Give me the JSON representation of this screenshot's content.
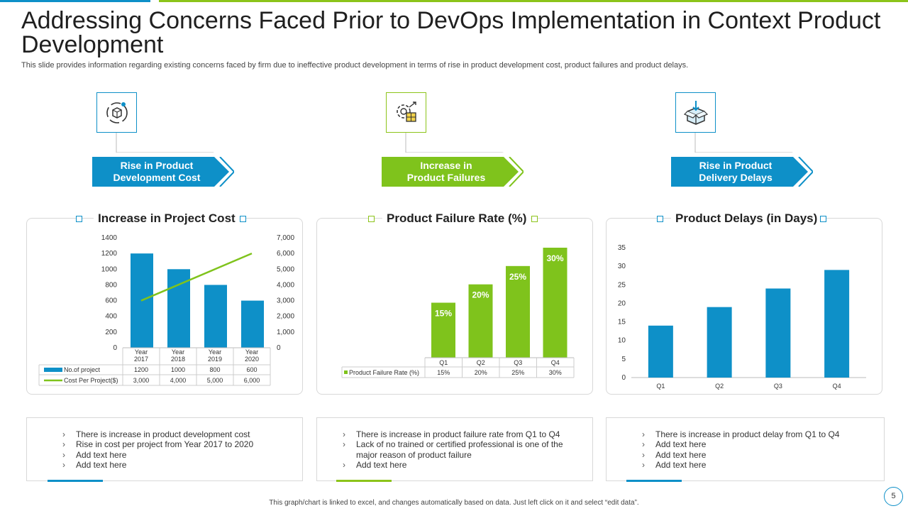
{
  "header": {
    "title": "Addressing Concerns Faced Prior to DevOps Implementation in Context Product Development",
    "subtitle": "This slide provides information regarding existing concerns faced by firm due to ineffective product development in terms of rise in product development cost, product failures and product delays."
  },
  "colors": {
    "blue": "#0e90c8",
    "green": "#8cc41a",
    "lime": "#7fc31c"
  },
  "sections": [
    {
      "icon": "product-cycle-icon",
      "arrow_label": [
        "Rise in Product",
        "Development Cost"
      ],
      "chart_title": "Increase in Project Cost",
      "notes": [
        "There is increase in product development cost",
        "Rise in cost per project from Year 2017 to 2020",
        "Add text here",
        "Add text here"
      ]
    },
    {
      "icon": "gear-box-icon",
      "arrow_label": [
        "Increase in",
        "Product Failures"
      ],
      "chart_title": "Product Failure Rate (%)",
      "notes": [
        "There is increase in product failure rate from Q1 to Q4",
        "Lack of no trained or certified professional is one of the major reason of product failure",
        "Add text here"
      ]
    },
    {
      "icon": "package-box-icon",
      "arrow_label": [
        "Rise in Product",
        "Delivery Delays"
      ],
      "chart_title": "Product Delays (in Days)",
      "notes": [
        "There is increase in product delay from Q1 to Q4",
        "Add text here",
        "Add text here",
        "Add text here"
      ]
    }
  ],
  "chart_data": [
    {
      "type": "bar",
      "title": "Increase in Project Cost",
      "categories": [
        "Year 2017",
        "Year 2018",
        "Year 2019",
        "Year 2020"
      ],
      "series": [
        {
          "name": "No.of project",
          "type": "bar",
          "axis": "left",
          "values": [
            1200,
            1000,
            800,
            600
          ],
          "display": [
            "1200",
            "1000",
            "800",
            "600"
          ]
        },
        {
          "name": "Cost Per Project($)",
          "type": "line",
          "axis": "right",
          "values": [
            3000,
            4000,
            5000,
            6000
          ],
          "display": [
            "3,000",
            "4,000",
            "5,000",
            "6,000"
          ]
        }
      ],
      "ylim_left": [
        0,
        1400
      ],
      "yticks_left": [
        "0",
        "200",
        "400",
        "600",
        "800",
        "1000",
        "1200",
        "1400"
      ],
      "ylim_right": [
        0,
        7000
      ],
      "yticks_right": [
        "0",
        "1,000",
        "2,000",
        "3,000",
        "4,000",
        "5,000",
        "6,000",
        "7,000"
      ]
    },
    {
      "type": "bar",
      "title": "Product Failure Rate (%)",
      "categories": [
        "Q1",
        "Q2",
        "Q3",
        "Q4"
      ],
      "series": [
        {
          "name": "Product Failure Rate (%)",
          "values": [
            15,
            20,
            25,
            30
          ],
          "labels": [
            "15%",
            "20%",
            "25%",
            "30%"
          ]
        }
      ],
      "ylim": [
        0,
        30
      ]
    },
    {
      "type": "bar",
      "title": "Product Delays (in Days)",
      "categories": [
        "Q1",
        "Q2",
        "Q3",
        "Q4"
      ],
      "series": [
        {
          "name": "Product Delays",
          "values": [
            14,
            19,
            24,
            29
          ]
        }
      ],
      "ylim": [
        0,
        35
      ],
      "yticks": [
        "0",
        "5",
        "10",
        "15",
        "20",
        "25",
        "30",
        "35"
      ]
    }
  ],
  "footer": {
    "note": "This graph/chart is linked to excel, and changes automatically based on data. Just left click on it and select “edit data”.",
    "page": "5"
  }
}
